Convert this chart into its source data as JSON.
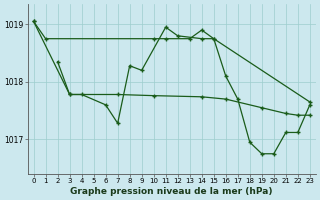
{
  "title": "Graphe pression niveau de la mer (hPa)",
  "bg_color": "#cce8ee",
  "line_color": "#1a5c1a",
  "grid_color": "#9ecece",
  "s1_x": [
    0,
    1,
    10,
    11,
    13,
    14,
    15,
    23
  ],
  "s1_y": [
    1019.05,
    1018.75,
    1018.75,
    1018.75,
    1018.75,
    1018.9,
    1018.75,
    1017.65
  ],
  "s2_x": [
    2,
    3,
    4,
    6,
    7,
    8,
    9,
    11,
    12,
    14,
    15,
    16,
    17,
    18,
    19,
    20,
    21,
    22,
    23
  ],
  "s2_y": [
    1018.35,
    1017.78,
    1017.78,
    1017.6,
    1017.28,
    1018.28,
    1018.2,
    1018.95,
    1018.8,
    1018.75,
    1018.75,
    1018.1,
    1017.7,
    1016.95,
    1016.75,
    1016.75,
    1017.12,
    1017.12,
    1017.6
  ],
  "s3_x": [
    0,
    3,
    7,
    10,
    14,
    16,
    19,
    21,
    22,
    23
  ],
  "s3_y": [
    1019.05,
    1017.78,
    1017.78,
    1017.76,
    1017.74,
    1017.7,
    1017.55,
    1017.45,
    1017.42,
    1017.42
  ],
  "ylim": [
    1016.4,
    1019.35
  ],
  "xlim": [
    -0.5,
    23.5
  ],
  "yticks": [
    1017.0,
    1018.0,
    1019.0
  ],
  "xticks": [
    0,
    1,
    2,
    3,
    4,
    5,
    6,
    7,
    8,
    9,
    10,
    11,
    12,
    13,
    14,
    15,
    16,
    17,
    18,
    19,
    20,
    21,
    22,
    23
  ],
  "tick_labelsize": 5.5,
  "title_fontsize": 6.5
}
